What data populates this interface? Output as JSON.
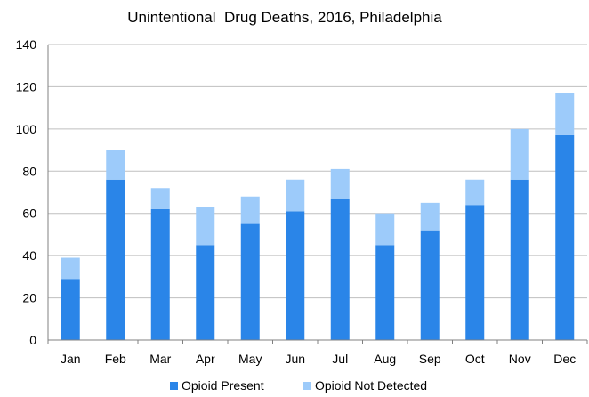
{
  "chart_data": {
    "type": "bar",
    "stacked": true,
    "title": "Unintentional  Drug Deaths, 2016, Philadelphia",
    "xlabel": "",
    "ylabel": "",
    "categories": [
      "Jan",
      "Feb",
      "Mar",
      "Apr",
      "May",
      "Jun",
      "Jul",
      "Aug",
      "Sep",
      "Oct",
      "Nov",
      "Dec"
    ],
    "series": [
      {
        "name": "Opioid Present",
        "color": "#2A85E8",
        "values": [
          29,
          76,
          62,
          45,
          55,
          61,
          67,
          45,
          52,
          64,
          76,
          97
        ]
      },
      {
        "name": "Opioid Not Detected",
        "color": "#9DCBFA",
        "values": [
          10,
          14,
          10,
          18,
          13,
          15,
          14,
          15,
          13,
          12,
          24,
          20
        ]
      }
    ],
    "ylim": [
      0,
      140
    ],
    "yticks": [
      0,
      20,
      40,
      60,
      80,
      100,
      120,
      140
    ],
    "grid": true,
    "legend_position": "bottom"
  }
}
